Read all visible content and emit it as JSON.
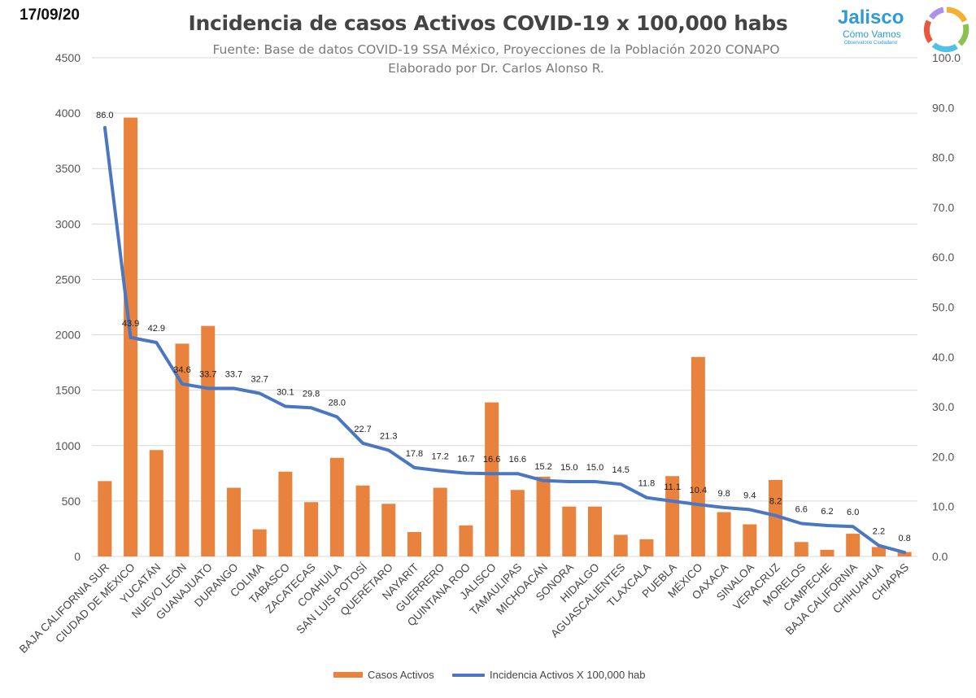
{
  "date": "17/09/20",
  "logo": {
    "name": "Jalisco",
    "subtitle": "Cómo Vamos",
    "tagline": "Observatorio Ciudadano"
  },
  "chart_data": {
    "type": "bar",
    "title": "Incidencia de casos Activos COVID-19 x 100,000 habs",
    "subtitle": "Fuente: Base de datos COVID-19 SSA México, Proyecciones de la Población 2020 CONAPO",
    "author": "Elaborado por Dr. Carlos Alonso R.",
    "categories": [
      "BAJA CALIFORNIA SUR",
      "CIUDAD DE MÉXICO",
      "YUCATÁN",
      "NUEVO LEÓN",
      "GUANAJUATO",
      "DURANGO",
      "COLIMA",
      "TABASCO",
      "ZACATECAS",
      "COAHUILA",
      "SAN LUIS POTOSÍ",
      "QUERÉTARO",
      "NAYARIT",
      "GUERRERO",
      "QUINTANA ROO",
      "JALISCO",
      "TAMAULIPAS",
      "MICHOACÁN",
      "SONORA",
      "HIDALGO",
      "AGUASCALIENTES",
      "TLAXCALA",
      "PUEBLA",
      "MÉXICO",
      "OAXACA",
      "SINALOA",
      "VERACRUZ",
      "MORELOS",
      "CAMPECHE",
      "BAJA CALIFORNIA",
      "CHIHUAHUA",
      "CHIAPAS"
    ],
    "series": [
      {
        "name": "Casos Activos",
        "type": "bar",
        "color": "#e8823c",
        "axis": "left",
        "values": [
          680,
          3960,
          960,
          1920,
          2080,
          620,
          245,
          765,
          490,
          890,
          640,
          475,
          220,
          620,
          280,
          1390,
          600,
          720,
          450,
          450,
          195,
          155,
          725,
          1800,
          400,
          290,
          690,
          130,
          60,
          205,
          85,
          40
        ]
      },
      {
        "name": "Incidencia Activos X 100,000 hab",
        "type": "line",
        "color": "#4a76c2",
        "axis": "right",
        "values": [
          86.0,
          43.9,
          42.9,
          34.6,
          33.7,
          33.7,
          32.7,
          30.1,
          29.8,
          28.0,
          22.7,
          21.3,
          17.8,
          17.2,
          16.7,
          16.6,
          16.6,
          15.2,
          15.0,
          15.0,
          14.5,
          11.8,
          11.1,
          10.4,
          9.8,
          9.4,
          8.2,
          6.6,
          6.2,
          6.0,
          2.2,
          0.8
        ],
        "labels": [
          "86.0",
          "43.9",
          "42.9",
          "34.6",
          "33.7",
          "33.7",
          "32.7",
          "30.1",
          "29.8",
          "28.0",
          "22.7",
          "21.3",
          "17.8",
          "17.2",
          "16.7",
          "16.6",
          "16.6",
          "15.2",
          "15.0",
          "15.0",
          "14.5",
          "11.8",
          "11.1",
          "10.4",
          "9.8",
          "9.4",
          "8.2",
          "6.6",
          "6.2",
          "6.0",
          "2.2",
          "0.8"
        ]
      }
    ],
    "y_left": {
      "ylim": [
        0,
        4500
      ],
      "ticks": [
        0,
        500,
        1000,
        1500,
        2000,
        2500,
        3000,
        3500,
        4000,
        4500
      ],
      "tick_labels": [
        "0",
        "500",
        "1000",
        "1500",
        "2000",
        "2500",
        "3000",
        "3500",
        "4000",
        "4500"
      ]
    },
    "y_right": {
      "ylim": [
        0,
        100
      ],
      "ticks": [
        0,
        10,
        20,
        30,
        40,
        50,
        60,
        70,
        80,
        90,
        100
      ],
      "tick_labels": [
        "0.0",
        "10.0",
        "20.0",
        "30.0",
        "40.0",
        "50.0",
        "60.0",
        "70.0",
        "80.0",
        "90.0",
        "100.0"
      ]
    },
    "grid": true,
    "legend": "bottom"
  }
}
